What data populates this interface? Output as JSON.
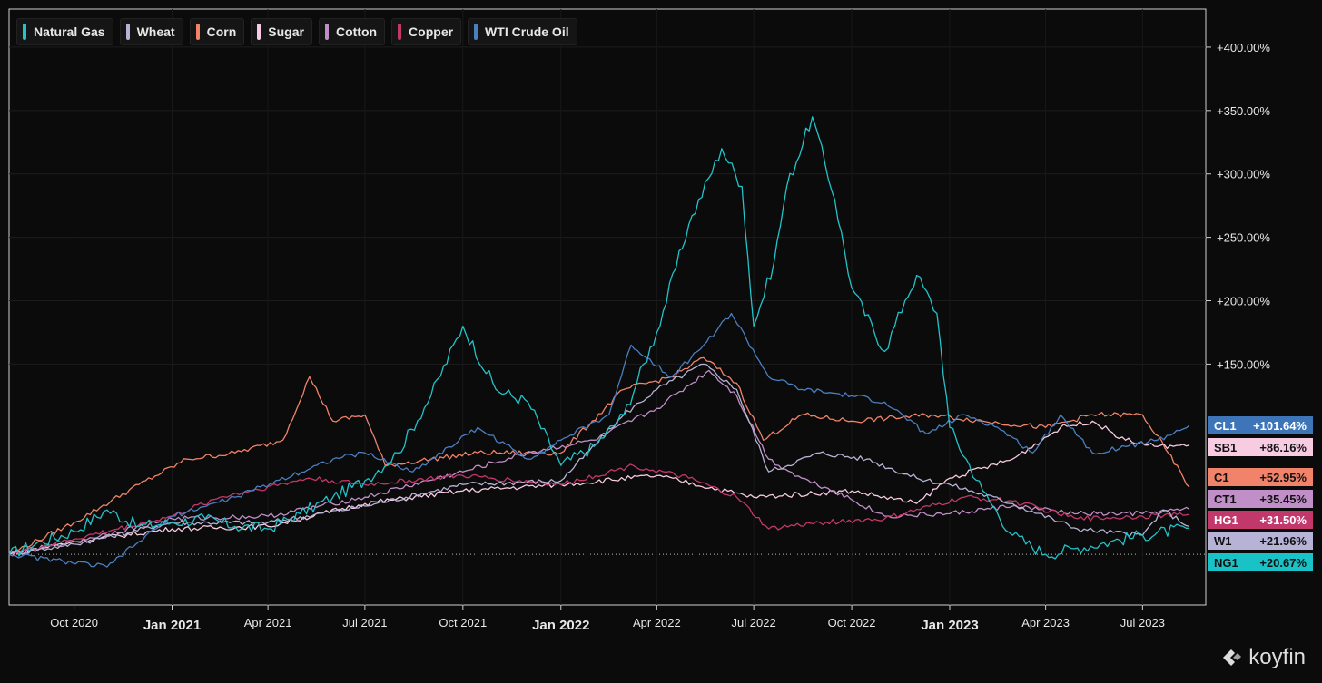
{
  "legend": [
    {
      "label": "Natural Gas",
      "color": "#22c3c9"
    },
    {
      "label": "Wheat",
      "color": "#b7b3d6"
    },
    {
      "label": "Corn",
      "color": "#f0836a"
    },
    {
      "label": "Sugar",
      "color": "#f7cbe1"
    },
    {
      "label": "Cotton",
      "color": "#c08fc8"
    },
    {
      "label": "Copper",
      "color": "#c2386a"
    },
    {
      "label": "WTI Crude Oil",
      "color": "#4a7fc1"
    }
  ],
  "tags": [
    {
      "ticker": "CL1",
      "value": "+101.64%",
      "color": "#3d75b8",
      "dark": false
    },
    {
      "ticker": "SB1",
      "value": "+86.16%",
      "color": "#f7cbe1",
      "dark": true
    },
    {
      "ticker": "C1",
      "value": "+52.95%",
      "color": "#f0836a",
      "dark": true
    },
    {
      "ticker": "CT1",
      "value": "+35.45%",
      "color": "#c08fc8",
      "dark": true
    },
    {
      "ticker": "HG1",
      "value": "+31.50%",
      "color": "#c2386a",
      "dark": false
    },
    {
      "ticker": "W1",
      "value": "+21.96%",
      "color": "#b7b3d6",
      "dark": true
    },
    {
      "ticker": "NG1",
      "value": "+20.67%",
      "color": "#19c2c7",
      "dark": true
    }
  ],
  "brand": {
    "name": "koyfin"
  },
  "chart_data": {
    "type": "line",
    "x_tick_labels": [
      "Oct 2020",
      "Jan 2021",
      "Apr 2021",
      "Jul 2021",
      "Oct 2021",
      "Jan 2022",
      "Apr 2022",
      "Jul 2022",
      "Oct 2022",
      "Jan 2023",
      "Apr 2023",
      "Jul 2023"
    ],
    "y_tick_labels": [
      "+150.00%",
      "+200.00%",
      "+250.00%",
      "+300.00%",
      "+350.00%",
      "+400.00%"
    ],
    "y_ticks": [
      150,
      200,
      250,
      300,
      350,
      400
    ],
    "ylim": [
      -40,
      430
    ],
    "x_range": [
      "2020-08-01",
      "2023-08-14"
    ],
    "baseline": 0,
    "series": [
      {
        "name": "Natural Gas",
        "color": "#22c3c9",
        "points": [
          [
            "2020-08-01",
            0
          ],
          [
            "2020-09-01",
            10
          ],
          [
            "2020-10-01",
            18
          ],
          [
            "2020-11-01",
            35
          ],
          [
            "2020-12-01",
            22
          ],
          [
            "2021-01-01",
            25
          ],
          [
            "2021-02-01",
            28
          ],
          [
            "2021-03-01",
            22
          ],
          [
            "2021-04-01",
            20
          ],
          [
            "2021-05-01",
            32
          ],
          [
            "2021-06-01",
            45
          ],
          [
            "2021-07-01",
            58
          ],
          [
            "2021-08-01",
            80
          ],
          [
            "2021-09-01",
            125
          ],
          [
            "2021-10-01",
            180
          ],
          [
            "2021-11-01",
            130
          ],
          [
            "2021-12-01",
            120
          ],
          [
            "2022-01-01",
            70
          ],
          [
            "2022-02-01",
            85
          ],
          [
            "2022-03-01",
            110
          ],
          [
            "2022-04-01",
            175
          ],
          [
            "2022-05-01",
            260
          ],
          [
            "2022-06-01",
            320
          ],
          [
            "2022-06-20",
            290
          ],
          [
            "2022-07-01",
            180
          ],
          [
            "2022-07-20",
            230
          ],
          [
            "2022-08-01",
            290
          ],
          [
            "2022-08-25",
            345
          ],
          [
            "2022-09-15",
            280
          ],
          [
            "2022-10-01",
            210
          ],
          [
            "2022-11-01",
            160
          ],
          [
            "2022-11-20",
            200
          ],
          [
            "2022-12-01",
            220
          ],
          [
            "2022-12-20",
            190
          ],
          [
            "2023-01-01",
            100
          ],
          [
            "2023-02-01",
            50
          ],
          [
            "2023-03-01",
            15
          ],
          [
            "2023-04-01",
            0
          ],
          [
            "2023-05-01",
            5
          ],
          [
            "2023-06-01",
            10
          ],
          [
            "2023-07-01",
            15
          ],
          [
            "2023-08-14",
            20.67
          ]
        ]
      },
      {
        "name": "Wheat",
        "color": "#b7b3d6",
        "points": [
          [
            "2020-08-01",
            0
          ],
          [
            "2020-10-01",
            8
          ],
          [
            "2021-01-01",
            25
          ],
          [
            "2021-04-01",
            25
          ],
          [
            "2021-07-01",
            38
          ],
          [
            "2021-10-01",
            55
          ],
          [
            "2022-01-01",
            58
          ],
          [
            "2022-03-01",
            110
          ],
          [
            "2022-04-01",
            130
          ],
          [
            "2022-05-15",
            150
          ],
          [
            "2022-06-15",
            130
          ],
          [
            "2022-07-15",
            65
          ],
          [
            "2022-09-01",
            80
          ],
          [
            "2022-10-15",
            75
          ],
          [
            "2022-12-01",
            60
          ],
          [
            "2023-01-01",
            55
          ],
          [
            "2023-03-01",
            40
          ],
          [
            "2023-05-01",
            20
          ],
          [
            "2023-07-01",
            15
          ],
          [
            "2023-07-20",
            35
          ],
          [
            "2023-08-14",
            21.96
          ]
        ]
      },
      {
        "name": "Corn",
        "color": "#f0836a",
        "points": [
          [
            "2020-08-01",
            0
          ],
          [
            "2020-10-01",
            25
          ],
          [
            "2020-12-01",
            55
          ],
          [
            "2021-01-15",
            75
          ],
          [
            "2021-03-01",
            80
          ],
          [
            "2021-04-15",
            90
          ],
          [
            "2021-05-10",
            140
          ],
          [
            "2021-06-01",
            105
          ],
          [
            "2021-07-01",
            110
          ],
          [
            "2021-07-20",
            70
          ],
          [
            "2021-09-01",
            75
          ],
          [
            "2021-10-15",
            80
          ],
          [
            "2022-01-01",
            80
          ],
          [
            "2022-03-01",
            130
          ],
          [
            "2022-04-15",
            140
          ],
          [
            "2022-05-15",
            155
          ],
          [
            "2022-06-15",
            135
          ],
          [
            "2022-07-10",
            90
          ],
          [
            "2022-08-15",
            110
          ],
          [
            "2022-10-01",
            105
          ],
          [
            "2022-12-15",
            110
          ],
          [
            "2023-02-01",
            105
          ],
          [
            "2023-04-01",
            100
          ],
          [
            "2023-05-15",
            110
          ],
          [
            "2023-07-01",
            110
          ],
          [
            "2023-07-25",
            80
          ],
          [
            "2023-08-14",
            52.95
          ]
        ]
      },
      {
        "name": "Sugar",
        "color": "#f7cbe1",
        "points": [
          [
            "2020-08-01",
            0
          ],
          [
            "2020-10-01",
            10
          ],
          [
            "2021-01-01",
            20
          ],
          [
            "2021-04-01",
            22
          ],
          [
            "2021-07-01",
            40
          ],
          [
            "2021-10-01",
            50
          ],
          [
            "2022-01-01",
            55
          ],
          [
            "2022-04-01",
            62
          ],
          [
            "2022-07-01",
            45
          ],
          [
            "2022-10-01",
            50
          ],
          [
            "2022-12-01",
            40
          ],
          [
            "2023-01-01",
            60
          ],
          [
            "2023-03-01",
            75
          ],
          [
            "2023-04-15",
            100
          ],
          [
            "2023-05-15",
            105
          ],
          [
            "2023-06-15",
            90
          ],
          [
            "2023-07-15",
            85
          ],
          [
            "2023-08-14",
            86.16
          ]
        ]
      },
      {
        "name": "Cotton",
        "color": "#c08fc8",
        "points": [
          [
            "2020-08-01",
            0
          ],
          [
            "2020-10-01",
            10
          ],
          [
            "2021-01-01",
            28
          ],
          [
            "2021-04-01",
            30
          ],
          [
            "2021-07-01",
            45
          ],
          [
            "2021-10-01",
            65
          ],
          [
            "2021-12-01",
            80
          ],
          [
            "2022-02-01",
            90
          ],
          [
            "2022-04-01",
            115
          ],
          [
            "2022-05-20",
            145
          ],
          [
            "2022-06-15",
            125
          ],
          [
            "2022-07-15",
            75
          ],
          [
            "2022-08-15",
            60
          ],
          [
            "2022-09-15",
            50
          ],
          [
            "2022-11-01",
            30
          ],
          [
            "2023-01-01",
            32
          ],
          [
            "2023-03-01",
            38
          ],
          [
            "2023-05-01",
            32
          ],
          [
            "2023-07-01",
            32
          ],
          [
            "2023-08-14",
            35.45
          ]
        ]
      },
      {
        "name": "Copper",
        "color": "#c2386a",
        "points": [
          [
            "2020-08-01",
            0
          ],
          [
            "2020-10-01",
            12
          ],
          [
            "2021-01-01",
            30
          ],
          [
            "2021-02-15",
            45
          ],
          [
            "2021-05-10",
            60
          ],
          [
            "2021-07-01",
            55
          ],
          [
            "2021-10-01",
            62
          ],
          [
            "2022-01-01",
            55
          ],
          [
            "2022-03-10",
            70
          ],
          [
            "2022-05-01",
            60
          ],
          [
            "2022-06-15",
            45
          ],
          [
            "2022-07-15",
            20
          ],
          [
            "2022-09-01",
            25
          ],
          [
            "2022-11-01",
            28
          ],
          [
            "2023-01-15",
            45
          ],
          [
            "2023-03-01",
            42
          ],
          [
            "2023-05-01",
            28
          ],
          [
            "2023-07-01",
            30
          ],
          [
            "2023-08-14",
            31.5
          ]
        ]
      },
      {
        "name": "WTI Crude Oil",
        "color": "#4a7fc1",
        "points": [
          [
            "2020-08-01",
            0
          ],
          [
            "2020-11-01",
            -10
          ],
          [
            "2020-12-01",
            10
          ],
          [
            "2021-01-01",
            30
          ],
          [
            "2021-03-01",
            45
          ],
          [
            "2021-06-01",
            75
          ],
          [
            "2021-07-01",
            80
          ],
          [
            "2021-08-15",
            65
          ],
          [
            "2021-10-15",
            100
          ],
          [
            "2021-12-01",
            75
          ],
          [
            "2022-01-01",
            90
          ],
          [
            "2022-02-15",
            110
          ],
          [
            "2022-03-08",
            165
          ],
          [
            "2022-04-15",
            140
          ],
          [
            "2022-05-15",
            165
          ],
          [
            "2022-06-10",
            190
          ],
          [
            "2022-07-15",
            140
          ],
          [
            "2022-08-15",
            130
          ],
          [
            "2022-10-01",
            125
          ],
          [
            "2022-11-01",
            120
          ],
          [
            "2022-12-10",
            95
          ],
          [
            "2023-01-15",
            110
          ],
          [
            "2023-02-15",
            100
          ],
          [
            "2023-03-20",
            80
          ],
          [
            "2023-04-15",
            110
          ],
          [
            "2023-05-15",
            80
          ],
          [
            "2023-06-15",
            85
          ],
          [
            "2023-07-15",
            90
          ],
          [
            "2023-08-14",
            101.64
          ]
        ]
      }
    ]
  }
}
